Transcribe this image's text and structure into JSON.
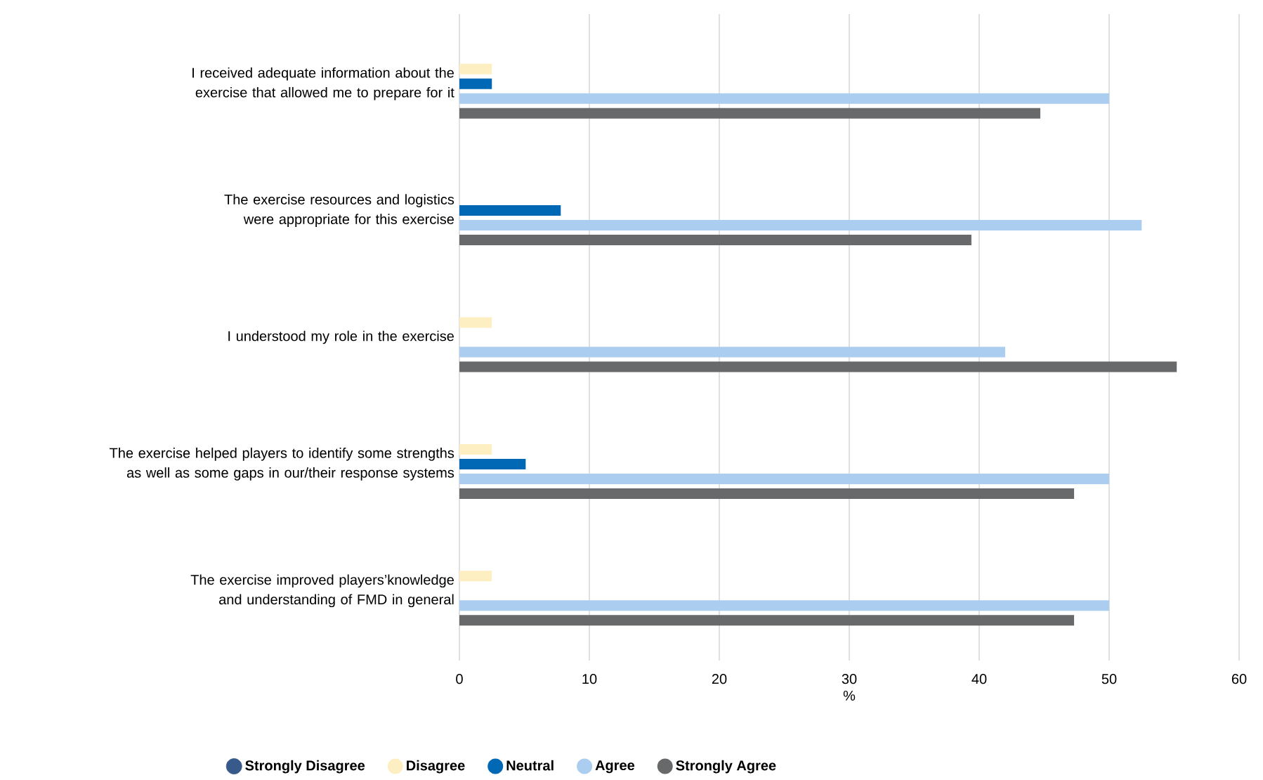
{
  "chart_data": {
    "type": "bar",
    "orientation": "horizontal",
    "xlabel": "%",
    "categories": [
      "I received adequate information about the exercise that allowed me to prepare for it",
      "The exercise resources and logistics were appropriate for this exercise",
      "I understood my role in the exercise",
      "The exercise helped players to identify some strengths as well as some gaps in our/their response systems",
      "The exercise improved players’knowledge and understanding of FMD in general"
    ],
    "series": [
      {
        "name": "Strongly Disagree",
        "color": "#375a8a",
        "values": [
          null,
          null,
          null,
          null,
          null
        ]
      },
      {
        "name": "Disagree",
        "color": "#fdefc2",
        "values": [
          2.5,
          null,
          2.5,
          2.5,
          2.5
        ]
      },
      {
        "name": "Neutral",
        "color": "#0068b4",
        "values": [
          2.5,
          7.8,
          null,
          5.1,
          null
        ]
      },
      {
        "name": "Agree",
        "color": "#abcdf0",
        "values": [
          50,
          52.5,
          42,
          50,
          50
        ]
      },
      {
        "name": "Strongly Agree",
        "color": "#68696b",
        "values": [
          44.7,
          39.4,
          55.2,
          47.3,
          47.3
        ]
      }
    ],
    "xlim": [
      0,
      60
    ],
    "xticks": [
      0,
      10,
      20,
      30,
      40,
      50,
      60
    ],
    "grid": "x",
    "legend": "bottom"
  }
}
